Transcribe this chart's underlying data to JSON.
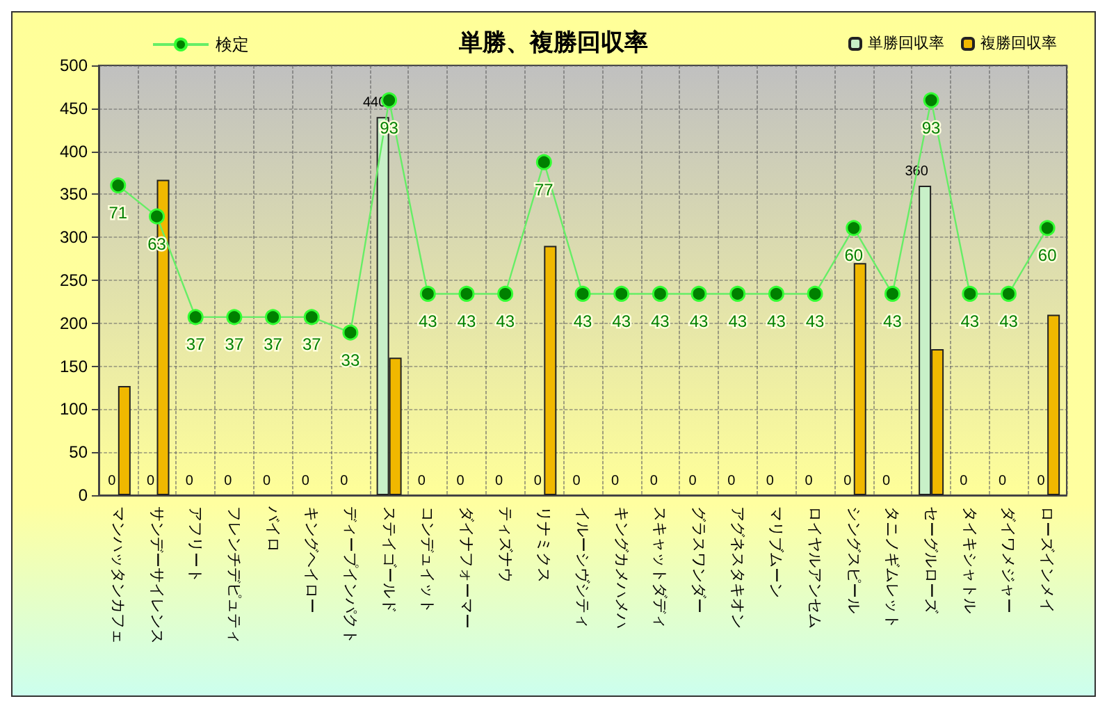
{
  "chart_data": {
    "type": "bar",
    "title": "単勝、複勝回収率",
    "categories": [
      "マンハッタンカフェ",
      "サンデーサイレンス",
      "アフリート",
      "フレンチデピュティ",
      "バイロ",
      "キングヘイロー",
      "ディープインパクト",
      "ステイゴールド",
      "コンデュイット",
      "ダイナフォーマー",
      "ティズナウ",
      "リナミクス",
      "イルーシヴシティ",
      "キングカメハメハ",
      "スキャットダディ",
      "グラスワンダー",
      "アグネスタキオン",
      "マリブムーン",
      "ロイヤルアンセム",
      "シングスピール",
      "タニノギムレット",
      "セーグルローズ",
      "タイキシャトル",
      "ダイワメジャー",
      "ローズインメイ"
    ],
    "series": [
      {
        "name": "検定",
        "type": "line",
        "axis": "y2",
        "color": "#008000",
        "values": [
          71,
          63,
          37,
          37,
          37,
          37,
          33,
          93,
          43,
          43,
          43,
          77,
          43,
          43,
          43,
          43,
          43,
          43,
          43,
          60,
          43,
          93,
          43,
          43,
          60
        ],
        "value_labels": [
          "71",
          "63",
          "37",
          "37",
          "37",
          "37",
          "33",
          "93",
          "43",
          "43",
          "43",
          "77",
          "43",
          "43",
          "43",
          "43",
          "43",
          "43",
          "43",
          "60",
          "43",
          "93",
          "43",
          "43",
          "60"
        ]
      },
      {
        "name": "単勝回収率",
        "color": "#c8f0c8",
        "values": [
          0,
          0,
          0,
          0,
          0,
          0,
          0,
          440,
          0,
          0,
          0,
          0,
          0,
          0,
          0,
          0,
          0,
          0,
          0,
          0,
          0,
          360,
          0,
          0,
          0
        ],
        "value_labels": [
          "0",
          "0",
          "0",
          "0",
          "0",
          "0",
          "0",
          "440",
          "0",
          "0",
          "0",
          "0",
          "0",
          "0",
          "0",
          "0",
          "0",
          "0",
          "0",
          "0",
          "0",
          "360",
          "0",
          "0",
          "0"
        ]
      },
      {
        "name": "複勝回収率",
        "color": "#f0b800",
        "values": [
          127,
          367,
          0,
          0,
          0,
          0,
          0,
          160,
          0,
          0,
          0,
          290,
          0,
          0,
          0,
          0,
          0,
          0,
          0,
          270,
          0,
          170,
          0,
          0,
          210
        ]
      }
    ],
    "ylim": [
      0,
      500
    ],
    "yticks": [
      0,
      50,
      100,
      150,
      200,
      250,
      300,
      350,
      400,
      450,
      500
    ],
    "y2lim": [
      -9,
      102
    ],
    "tick_labels": "xy",
    "grid": true,
    "legend": "top",
    "marker": "circle",
    "line_style": "solid"
  }
}
